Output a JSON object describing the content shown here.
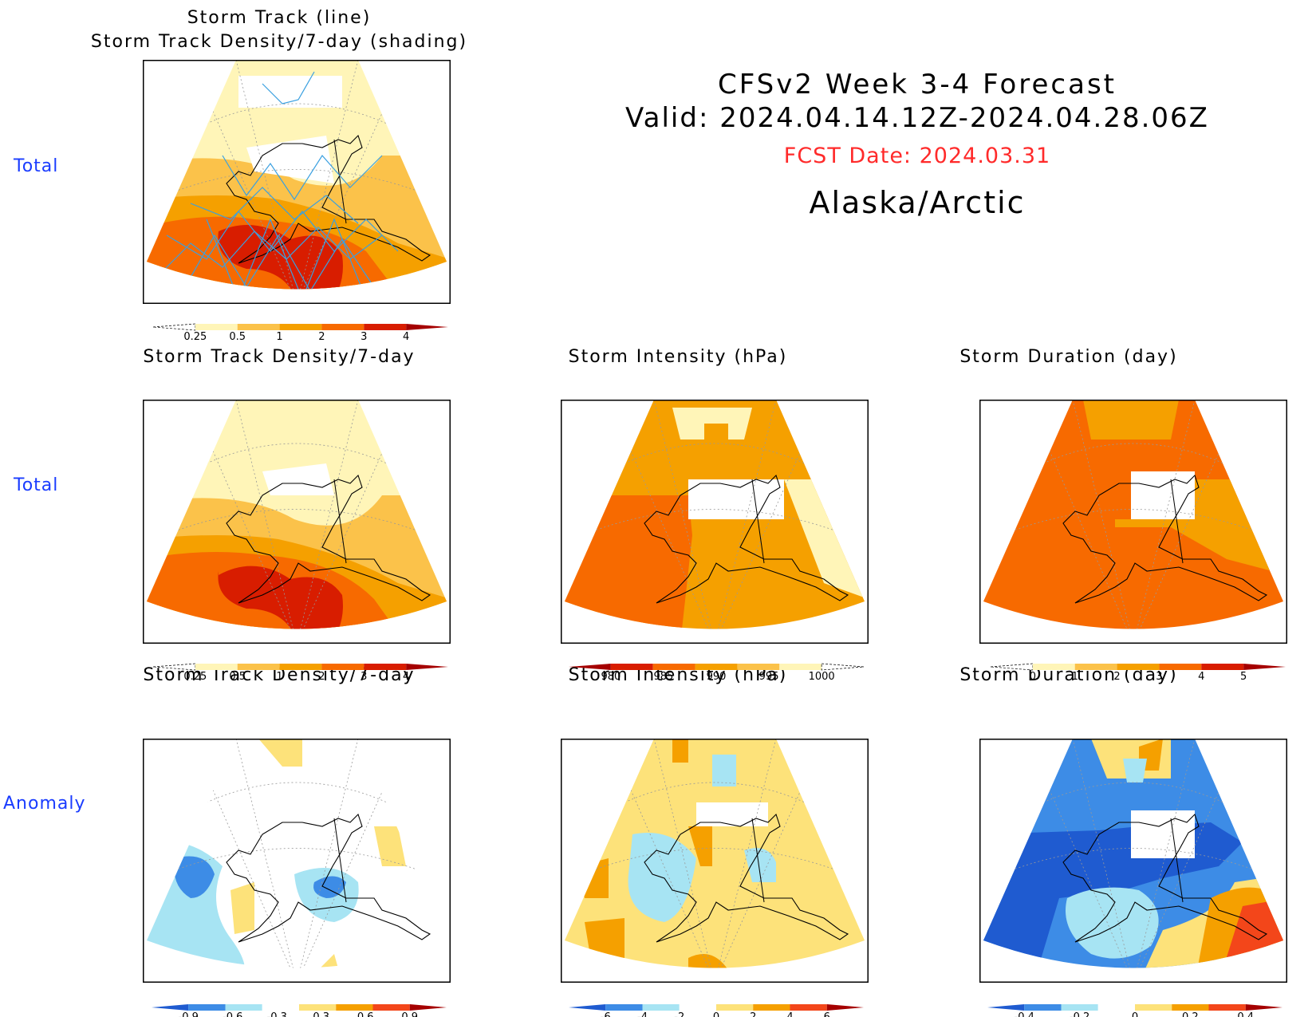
{
  "header": {
    "line1": "CFSv2 Week 3-4 Forecast",
    "line2": "Valid: 2024.04.14.12Z-2024.04.28.06Z",
    "fcst_date": "FCST Date: 2024.03.31",
    "region": "Alaska/Arctic"
  },
  "row_labels": {
    "row1": "Total",
    "row2": "Total",
    "row3": "Anomaly"
  },
  "colors": {
    "density": [
      "#fff5b8",
      "#fbc24a",
      "#f5a000",
      "#f76a00",
      "#d81d00",
      "#a50000"
    ],
    "intensity": [
      "#a50000",
      "#d81d00",
      "#f76a00",
      "#f5a000",
      "#fbc24a",
      "#fff5b8"
    ],
    "duration": [
      "#fff5b8",
      "#fbc24a",
      "#f5a000",
      "#f76a00",
      "#d81d00",
      "#a50000"
    ],
    "anomaly": [
      "#1f5bd0",
      "#3d8ce6",
      "#a7e4f3",
      "#ffffff",
      "#fde27a",
      "#f5a000",
      "#f3461a",
      "#a50000"
    ],
    "track_line": "#3aa0e0"
  },
  "chart_data": [
    {
      "type": "heatmap",
      "title": "Storm Track (line)",
      "subtitle": "Storm Track Density/7-day (shading)",
      "colorbar_ticks": [
        "0.25",
        "0.5",
        "1",
        "2",
        "3",
        "4"
      ]
    },
    {
      "type": "heatmap",
      "title": "Storm Track Density/7-day",
      "colorbar_ticks": [
        "0.25",
        "0.5",
        "1",
        "2",
        "3",
        "4"
      ]
    },
    {
      "type": "heatmap",
      "title": "Storm Intensity (hPa)",
      "colorbar_ticks": [
        "980",
        "985",
        "990",
        "995",
        "1000"
      ]
    },
    {
      "type": "heatmap",
      "title": "Storm Duration (day)",
      "colorbar_ticks": [
        "0",
        "1",
        "2",
        "3",
        "4",
        "5"
      ]
    },
    {
      "type": "heatmap",
      "title": "Storm Track Density/7-day",
      "colorbar_ticks": [
        "-0.9",
        "-0.6",
        "-0.3",
        "0.3",
        "0.6",
        "0.9"
      ]
    },
    {
      "type": "heatmap",
      "title": "Storm Intensity (hPa)",
      "colorbar_ticks": [
        "-6",
        "-4",
        "-2",
        "0",
        "2",
        "4",
        "6"
      ]
    },
    {
      "type": "heatmap",
      "title": "Storm Duration (day)",
      "colorbar_ticks": [
        "-0.4",
        "-0.2",
        "0",
        "0.2",
        "0.4"
      ]
    }
  ]
}
